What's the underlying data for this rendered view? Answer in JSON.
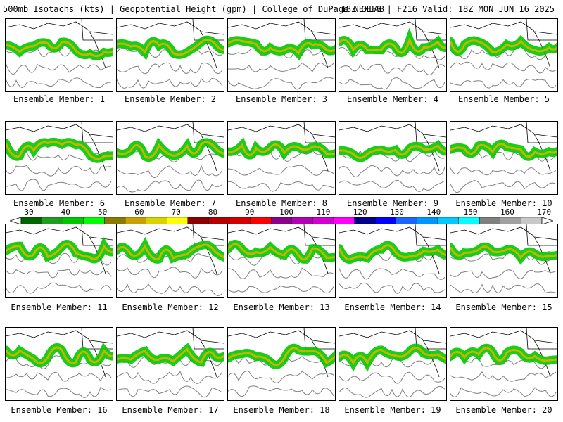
{
  "header": {
    "left": "500mb Isotachs (kts) | Geopotential Height (gpm) | College of DuPage NEXLAB",
    "right": "18Z GEFS | F216 Valid: 18Z MON JUN 16 2025"
  },
  "panels": [
    {
      "label": "Ensemble Member: 1"
    },
    {
      "label": "Ensemble Member: 2"
    },
    {
      "label": "Ensemble Member: 3"
    },
    {
      "label": "Ensemble Member: 4"
    },
    {
      "label": "Ensemble Member: 5"
    },
    {
      "label": "Ensemble Member: 6"
    },
    {
      "label": "Ensemble Member: 7"
    },
    {
      "label": "Ensemble Member: 8"
    },
    {
      "label": "Ensemble Member: 9"
    },
    {
      "label": "Ensemble Member: 10"
    },
    {
      "label": "Ensemble Member: 11"
    },
    {
      "label": "Ensemble Member: 12"
    },
    {
      "label": "Ensemble Member: 13"
    },
    {
      "label": "Ensemble Member: 14"
    },
    {
      "label": "Ensemble Member: 15"
    },
    {
      "label": "Ensemble Member: 16"
    },
    {
      "label": "Ensemble Member: 17"
    },
    {
      "label": "Ensemble Member: 18"
    },
    {
      "label": "Ensemble Member: 19"
    },
    {
      "label": "Ensemble Member: 20"
    }
  ],
  "colorbar": {
    "labels": [
      "30",
      "40",
      "50",
      "60",
      "70",
      "80",
      "90",
      "100",
      "110",
      "120",
      "130",
      "140",
      "150",
      "160",
      "170"
    ],
    "colors": [
      "#006400",
      "#1e9e1e",
      "#00c800",
      "#00ff00",
      "#8b7a00",
      "#c8a000",
      "#dcd200",
      "#ffff00",
      "#8b0000",
      "#b40000",
      "#d20000",
      "#ff0000",
      "#8b008b",
      "#b400b4",
      "#d200d2",
      "#ff00ff",
      "#00008b",
      "#0000ff",
      "#1e64ff",
      "#0096ff",
      "#00c8ff",
      "#00ffff",
      "#808080",
      "#a0a0a0",
      "#c8c8c8"
    ],
    "fill_colors": {
      "green_dark": "#009600",
      "green": "#00c800",
      "yellow": "#c8b400",
      "red": "#8b0000"
    }
  }
}
